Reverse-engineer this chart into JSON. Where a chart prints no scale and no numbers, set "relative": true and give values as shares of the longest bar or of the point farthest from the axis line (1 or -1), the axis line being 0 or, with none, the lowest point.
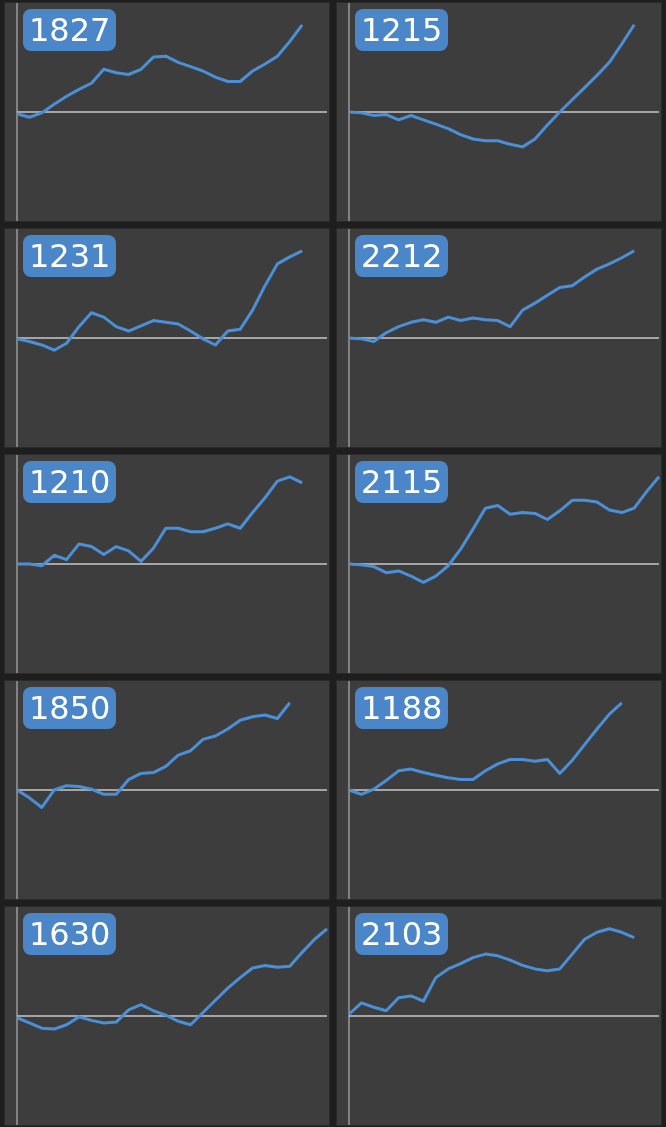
{
  "chart_data": [
    {
      "type": "line",
      "title": "1827",
      "categories": [
        null,
        null,
        null,
        null,
        null,
        null,
        null,
        null,
        null,
        null,
        null,
        null,
        null,
        null,
        null,
        null,
        null,
        null,
        null,
        null,
        null,
        null,
        null,
        null,
        null,
        null
      ],
      "values": [
        -0.02,
        -0.06,
        -0.01,
        0.09,
        0.18,
        0.26,
        0.33,
        0.49,
        0.45,
        0.43,
        0.49,
        0.63,
        0.64,
        0.57,
        0.52,
        0.47,
        0.4,
        0.35,
        0.35,
        0.47,
        0.55,
        0.64,
        0.81,
        1,
        null,
        null
      ],
      "color": "#4a90d9",
      "relative": true
    },
    {
      "type": "line",
      "title": "1215",
      "categories": [
        null,
        null,
        null,
        null,
        null,
        null,
        null,
        null,
        null,
        null,
        null,
        null,
        null,
        null,
        null,
        null,
        null,
        null,
        null,
        null,
        null,
        null,
        null,
        null,
        null,
        null
      ],
      "values": [
        0,
        -0.01,
        -0.04,
        -0.03,
        -0.09,
        -0.04,
        -0.09,
        -0.14,
        -0.19,
        -0.26,
        -0.31,
        -0.33,
        -0.33,
        -0.37,
        -0.4,
        -0.31,
        -0.15,
        0,
        0.14,
        0.28,
        0.42,
        0.57,
        0.78,
        1,
        null,
        null
      ],
      "color": "#4a90d9",
      "relative": true
    },
    {
      "type": "line",
      "title": "1231",
      "categories": [
        null,
        null,
        null,
        null,
        null,
        null,
        null,
        null,
        null,
        null,
        null,
        null,
        null,
        null,
        null,
        null,
        null,
        null,
        null,
        null,
        null,
        null,
        null,
        null,
        null,
        null
      ],
      "values": [
        -0.01,
        -0.04,
        -0.08,
        -0.14,
        -0.06,
        0.13,
        0.29,
        0.24,
        0.13,
        0.08,
        0.14,
        0.2,
        0.18,
        0.16,
        0.08,
        -0.01,
        -0.08,
        0.08,
        0.1,
        0.32,
        0.6,
        0.85,
        0.93,
        1,
        null,
        null
      ],
      "color": "#4a90d9",
      "relative": true
    },
    {
      "type": "line",
      "title": "2212",
      "categories": [
        null,
        null,
        null,
        null,
        null,
        null,
        null,
        null,
        null,
        null,
        null,
        null,
        null,
        null,
        null,
        null,
        null,
        null,
        null,
        null,
        null,
        null,
        null,
        null,
        null,
        null
      ],
      "values": [
        0,
        -0.01,
        -0.04,
        0.06,
        0.13,
        0.18,
        0.21,
        0.18,
        0.24,
        0.2,
        0.23,
        0.21,
        0.2,
        0.13,
        0.32,
        0.4,
        0.49,
        0.58,
        0.6,
        0.7,
        0.79,
        0.85,
        0.92,
        1,
        null,
        null
      ],
      "color": "#4a90d9",
      "relative": true
    },
    {
      "type": "line",
      "title": "1210",
      "categories": [
        null,
        null,
        null,
        null,
        null,
        null,
        null,
        null,
        null,
        null,
        null,
        null,
        null,
        null,
        null,
        null,
        null,
        null,
        null,
        null,
        null,
        null,
        null,
        null,
        null,
        null
      ],
      "values": [
        0,
        0,
        -0.02,
        0.1,
        0.05,
        0.23,
        0.2,
        0.11,
        0.2,
        0.15,
        0.03,
        0.18,
        0.41,
        0.41,
        0.37,
        0.37,
        0.41,
        0.46,
        0.41,
        0.59,
        0.76,
        0.95,
        1,
        0.93,
        null,
        null
      ],
      "color": "#4a90d9",
      "relative": true
    },
    {
      "type": "line",
      "title": "2115",
      "categories": [
        null,
        null,
        null,
        null,
        null,
        null,
        null,
        null,
        null,
        null,
        null,
        null,
        null,
        null,
        null,
        null,
        null,
        null,
        null,
        null,
        null,
        null,
        null,
        null,
        null,
        null
      ],
      "values": [
        0,
        -0.01,
        -0.03,
        -0.1,
        -0.08,
        -0.14,
        -0.21,
        -0.14,
        -0.02,
        0.17,
        0.4,
        0.64,
        0.67,
        0.57,
        0.59,
        0.58,
        0.51,
        0.61,
        0.73,
        0.73,
        0.71,
        0.62,
        0.59,
        0.64,
        0.83,
        1
      ],
      "color": "#4a90d9",
      "relative": true
    },
    {
      "type": "line",
      "title": "1850",
      "categories": [
        null,
        null,
        null,
        null,
        null,
        null,
        null,
        null,
        null,
        null,
        null,
        null,
        null,
        null,
        null,
        null,
        null,
        null,
        null,
        null,
        null,
        null,
        null,
        null,
        null,
        null
      ],
      "values": [
        0,
        -0.09,
        -0.2,
        0,
        0.05,
        0.04,
        0.01,
        -0.05,
        -0.05,
        0.12,
        0.19,
        0.2,
        0.27,
        0.4,
        0.45,
        0.58,
        0.62,
        0.7,
        0.8,
        0.84,
        0.86,
        0.82,
        1,
        null,
        null,
        null
      ],
      "color": "#4a90d9",
      "relative": true
    },
    {
      "type": "line",
      "title": "1188",
      "categories": [
        null,
        null,
        null,
        null,
        null,
        null,
        null,
        null,
        null,
        null,
        null,
        null,
        null,
        null,
        null,
        null,
        null,
        null,
        null,
        null,
        null,
        null,
        null,
        null,
        null,
        null
      ],
      "values": [
        0,
        -0.05,
        0.01,
        0.11,
        0.22,
        0.24,
        0.2,
        0.17,
        0.14,
        0.12,
        0.12,
        0.22,
        0.3,
        0.35,
        0.35,
        0.33,
        0.35,
        0.19,
        0.34,
        0.52,
        0.7,
        0.87,
        1,
        null,
        null,
        null
      ],
      "color": "#4a90d9",
      "relative": true
    },
    {
      "type": "line",
      "title": "1630",
      "categories": [
        null,
        null,
        null,
        null,
        null,
        null,
        null,
        null,
        null,
        null,
        null,
        null,
        null,
        null,
        null,
        null,
        null,
        null,
        null,
        null,
        null,
        null,
        null,
        null,
        null,
        null
      ],
      "values": [
        -0.02,
        -0.08,
        -0.14,
        -0.15,
        -0.1,
        -0.01,
        -0.05,
        -0.08,
        -0.07,
        0.07,
        0.13,
        0.06,
        0.01,
        -0.06,
        -0.1,
        0.04,
        0.18,
        0.32,
        0.44,
        0.55,
        0.58,
        0.56,
        0.57,
        0.73,
        0.88,
        1
      ],
      "color": "#4a90d9",
      "relative": true
    },
    {
      "type": "line",
      "title": "2103",
      "categories": [
        null,
        null,
        null,
        null,
        null,
        null,
        null,
        null,
        null,
        null,
        null,
        null,
        null,
        null,
        null,
        null,
        null,
        null,
        null,
        null,
        null,
        null,
        null,
        null,
        null,
        null
      ],
      "values": [
        0.02,
        0.15,
        0.1,
        0.06,
        0.21,
        0.23,
        0.17,
        0.44,
        0.54,
        0.6,
        0.67,
        0.71,
        0.69,
        0.64,
        0.58,
        0.54,
        0.52,
        0.54,
        0.71,
        0.88,
        0.96,
        1,
        0.96,
        0.9,
        null,
        null
      ],
      "color": "#4a90d9",
      "relative": true
    }
  ]
}
